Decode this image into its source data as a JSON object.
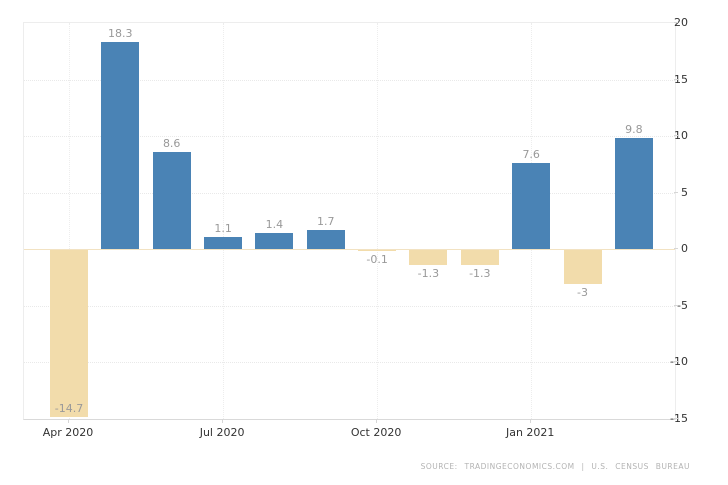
{
  "chart_data": {
    "type": "bar",
    "title": "",
    "xlabel": "",
    "ylabel": "",
    "values": [
      -14.7,
      18.3,
      8.6,
      1.1,
      1.4,
      1.7,
      -0.1,
      -1.3,
      -1.3,
      7.6,
      -3,
      9.8
    ],
    "bar_labels": [
      "-14.7",
      "18.3",
      "8.6",
      "1.1",
      "1.4",
      "1.7",
      "-0.1",
      "-1.3",
      "-1.3",
      "7.6",
      "-3",
      "9.8"
    ],
    "x_ticks": [
      {
        "index": 0,
        "label": "Apr 2020"
      },
      {
        "index": 3,
        "label": "Jul 2020"
      },
      {
        "index": 6,
        "label": "Oct 2020"
      },
      {
        "index": 9,
        "label": "Jan 2021"
      }
    ],
    "y_ticks": [
      20,
      15,
      10,
      5,
      0,
      -5,
      -10,
      -15
    ],
    "ylim": [
      -15,
      20
    ],
    "grid": true,
    "legend_position": "none",
    "colors": {
      "positive": "#4a83b5",
      "negative": "#f2dcab",
      "value_label": "#999999"
    }
  },
  "footer": {
    "source_text": "SOURCE:  TRADINGECONOMICS.COM  |  U.S. CENSUS BUREAU"
  }
}
